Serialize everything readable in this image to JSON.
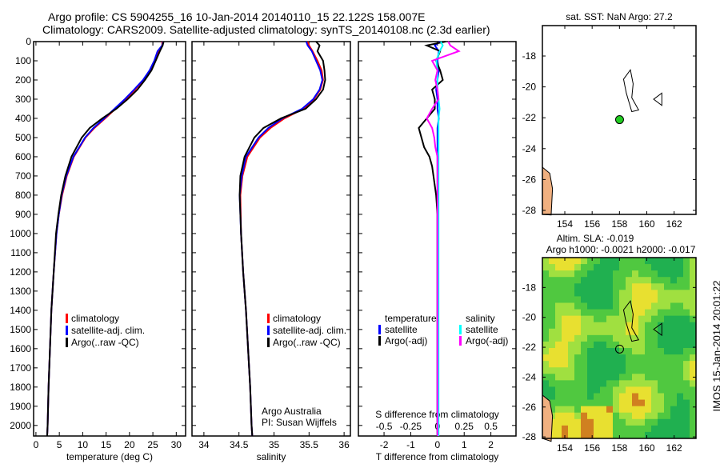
{
  "title": {
    "line1": "Argo profile: CS 5904255_16 10-Jan-2014 20140110_15 22.122S 158.007E",
    "line2": "Climatology: CARS2009. Satellite-adjusted climatology: synTS_20140108.nc (2.3d earlier)"
  },
  "side_label": "IMOS 15-Jan-2014 20:01:22",
  "colors": {
    "clim": "#ff0000",
    "sat": "#0000ff",
    "argo": "#000000",
    "sal_sat": "#00ffff",
    "sal_argo": "#ff00ff",
    "land": "#f0b080",
    "marker": "#22cc22"
  },
  "chart_data": [
    {
      "type": "line",
      "id": "temperature",
      "xlabel": "temperature (deg C)",
      "xlim": [
        -0.5,
        32
      ],
      "ylim": [
        2055,
        0
      ],
      "xticks": [
        0,
        5,
        10,
        15,
        20,
        25,
        30
      ],
      "yticks": [
        0,
        100,
        200,
        300,
        400,
        500,
        600,
        700,
        800,
        900,
        1000,
        1100,
        1200,
        1300,
        1400,
        1500,
        1600,
        1700,
        1800,
        1900,
        2000
      ],
      "depth": [
        0,
        20,
        50,
        100,
        150,
        200,
        250,
        300,
        350,
        400,
        450,
        500,
        600,
        700,
        800,
        900,
        1000,
        1200,
        1400,
        1600,
        1800,
        2000,
        2055
      ],
      "series": [
        {
          "name": "climatology",
          "color": "#ff0000",
          "values": [
            27,
            27,
            26.2,
            25.5,
            24.5,
            23,
            21.2,
            19.2,
            17,
            14.8,
            12.5,
            10.6,
            8.1,
            6.6,
            5.6,
            4.9,
            4.4,
            3.8,
            3.3,
            3.0,
            2.7,
            2.5,
            2.4
          ]
        },
        {
          "name": "satellite-adj. clim.",
          "color": "#0000ff",
          "values": [
            27.2,
            27,
            26,
            25.3,
            24.3,
            22.9,
            21,
            19,
            16.8,
            14.6,
            12.3,
            10.5,
            8,
            6.5,
            5.5,
            4.9,
            4.4,
            3.8,
            3.3,
            3.0,
            2.7,
            2.5,
            2.4
          ]
        },
        {
          "name": "Argo(..raw -QC)",
          "color": "#000000",
          "values": [
            27.3,
            27.1,
            26.5,
            25.6,
            24.7,
            23.3,
            21.7,
            19.6,
            17.2,
            14.2,
            11.5,
            9.8,
            7.6,
            6.3,
            5.4,
            4.8,
            4.3,
            3.8,
            3.3,
            3.0,
            2.7,
            2.5,
            2.4
          ]
        }
      ],
      "legend": [
        "climatology",
        "satellite-adj. clim.",
        "Argo(..raw -QC)"
      ],
      "legend_position": "lower-middle"
    },
    {
      "type": "line",
      "id": "salinity",
      "xlabel": "salinity",
      "xlim": [
        33.83,
        36.09
      ],
      "ylim": [
        2055,
        0
      ],
      "xticks": [
        34,
        34.5,
        35,
        35.5,
        36
      ],
      "depth": [
        0,
        20,
        50,
        100,
        150,
        200,
        250,
        300,
        350,
        400,
        450,
        500,
        600,
        700,
        800,
        1000,
        1200,
        1400,
        1600,
        1800,
        2000,
        2055
      ],
      "series": [
        {
          "name": "climatology",
          "color": "#ff0000",
          "values": [
            35.48,
            35.5,
            35.55,
            35.62,
            35.68,
            35.7,
            35.66,
            35.57,
            35.42,
            35.15,
            34.95,
            34.8,
            34.62,
            34.55,
            34.52,
            34.53,
            34.56,
            34.6,
            34.63,
            34.66,
            34.68,
            34.69
          ]
        },
        {
          "name": "satellite-adj. clim.",
          "color": "#0000ff",
          "values": [
            35.46,
            35.48,
            35.54,
            35.6,
            35.66,
            35.69,
            35.65,
            35.56,
            35.4,
            35.12,
            34.92,
            34.78,
            34.6,
            34.54,
            34.51,
            34.53,
            34.56,
            34.6,
            34.63,
            34.66,
            34.68,
            34.69
          ]
        },
        {
          "name": "Argo(..raw -QC)",
          "color": "#000000",
          "values": [
            35.6,
            35.65,
            35.62,
            35.7,
            35.72,
            35.73,
            35.7,
            35.6,
            35.45,
            35.1,
            34.85,
            34.72,
            34.58,
            34.52,
            34.51,
            34.53,
            34.56,
            34.6,
            34.63,
            34.66,
            34.68,
            34.69
          ]
        }
      ],
      "legend": [
        "climatology",
        "satellite-adj. clim.",
        "Argo(..raw -QC)"
      ],
      "note1": "Argo Australia",
      "note2": "PI: Susan Wijffels"
    },
    {
      "type": "line",
      "id": "difference",
      "xlabel": "T difference from climatology",
      "x2label": "S difference from climatology",
      "xlim": [
        -2.96,
        2.94
      ],
      "ylim": [
        2055,
        0
      ],
      "xticks": [
        -2,
        -1,
        0,
        1,
        2
      ],
      "x2ticks": [
        "-0.5",
        "-0.25",
        "0",
        "0.25",
        "0.5"
      ],
      "x2values": [
        -0.5,
        -0.25,
        0,
        0.25,
        0.5
      ],
      "depth": [
        0,
        20,
        50,
        100,
        150,
        200,
        250,
        300,
        350,
        400,
        450,
        500,
        550,
        600,
        650,
        700,
        750,
        800,
        900,
        1000,
        1500,
        2000,
        2055
      ],
      "series": [
        {
          "name": "temperature satellite",
          "color": "#0000ff",
          "values": [
            0.1,
            -0.1,
            0.05,
            0,
            0.05,
            0,
            -0.05,
            0,
            0,
            0.05,
            0,
            0,
            0,
            0,
            0,
            0,
            0,
            0,
            0,
            0,
            0,
            0,
            0
          ]
        },
        {
          "name": "temperature Argo(-adj)",
          "color": "#000000",
          "values": [
            0.3,
            -0.4,
            0.1,
            -0.05,
            0.1,
            0.2,
            -0.2,
            -0.1,
            -0.1,
            -0.4,
            -0.7,
            -0.6,
            -0.5,
            -0.3,
            -0.2,
            -0.15,
            -0.1,
            -0.05,
            0,
            0,
            0,
            0,
            0
          ]
        },
        {
          "name": "salinity satellite",
          "color": "#00ffff",
          "values": [
            0.03,
            0.05,
            0.02,
            -0.01,
            0,
            0,
            0,
            0.01,
            0.02,
            0.01,
            0.01,
            0.01,
            0.01,
            0.01,
            0.01,
            0.01,
            0.01,
            0.01,
            0.01,
            0.01,
            0.01,
            0.01,
            0.01
          ]
        },
        {
          "name": "salinity Argo(-adj)",
          "color": "#ff00ff",
          "values": [
            0.1,
            0.12,
            0.2,
            -0.05,
            0.0,
            -0.02,
            0.0,
            0.01,
            -0.05,
            -0.1,
            -0.05,
            -0.03,
            -0.02,
            0,
            0,
            0,
            0,
            0,
            0,
            0,
            0,
            0,
            0
          ]
        }
      ],
      "legend_headers": [
        "temperature",
        "salinity"
      ],
      "legend": [
        "satellite",
        "Argo(-adj)",
        "satellite",
        "Argo(-adj)"
      ]
    },
    {
      "type": "map",
      "id": "sst_map",
      "title": "sat. SST: NaN Argo: 27.2",
      "lon": [
        152.36,
        163.6
      ],
      "lat": [
        -28.26,
        -16.03
      ],
      "xticks": [
        154,
        156,
        158,
        160,
        162
      ],
      "yticks": [
        -18,
        -20,
        -22,
        -24,
        -26,
        -28
      ],
      "float_lon": 158.007,
      "float_lat": -22.122
    },
    {
      "type": "heatmap",
      "id": "sla_map",
      "title1": "Altim. SLA: -0.019",
      "title2": "Argo h1000: -0.0021 h2000: -0.017",
      "lon": [
        152.36,
        163.6
      ],
      "lat": [
        -28.1,
        -16.0
      ],
      "xticks": [
        154,
        156,
        158,
        160,
        162
      ],
      "yticks": [
        -18,
        -20,
        -22,
        -24,
        -26,
        -28
      ],
      "float_lon": 158.007,
      "float_lat": -22.122
    }
  ]
}
